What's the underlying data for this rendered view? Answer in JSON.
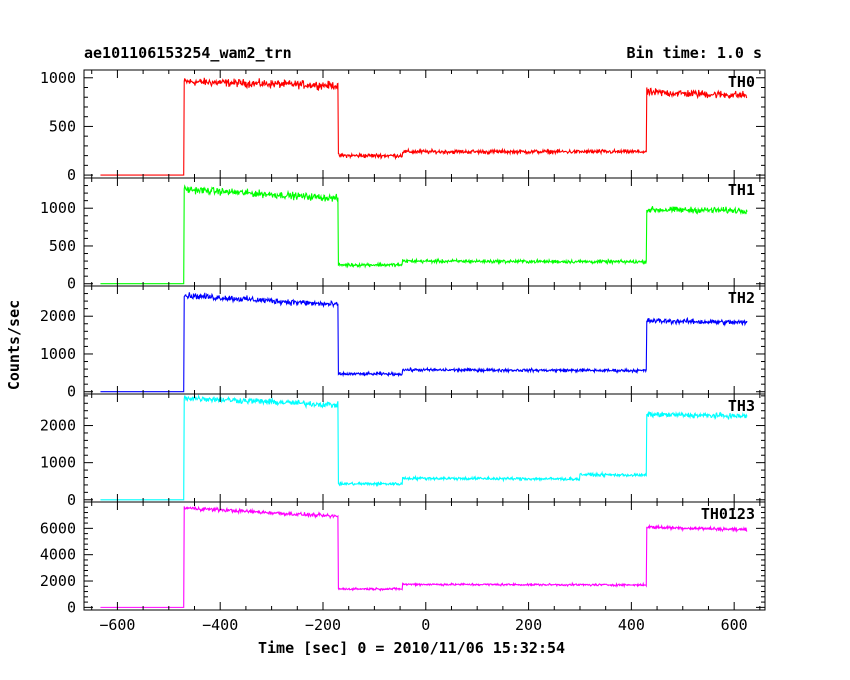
{
  "header": {
    "title": "ae101106153254_wam2_trn",
    "bin_time": "Bin time: 1.0 s"
  },
  "chart_data": {
    "type": "line",
    "title": "ae101106153254_wam2_trn",
    "xlabel": "Time [sec] 0 = 2010/11/06 15:32:54",
    "ylabel": "Counts/sec",
    "xlim": [
      -665,
      660
    ],
    "xticks": [
      -600,
      -400,
      -200,
      0,
      200,
      400,
      600
    ],
    "xticklabels": [
      "−600",
      "−400",
      "−200",
      "0",
      "200",
      "400",
      "600"
    ],
    "x_range": [
      -633,
      625
    ],
    "grid": false,
    "panels": [
      {
        "name": "TH0",
        "color": "#ff0000",
        "ylim": [
          -30,
          1080
        ],
        "yticks": [
          0,
          500,
          1000
        ],
        "segments": [
          {
            "x0": -633,
            "x1": -470,
            "y0": 0,
            "y1": 0,
            "noise": 0
          },
          {
            "x0": -470,
            "x1": -170,
            "y0": 960,
            "y1": 920,
            "noise": 35
          },
          {
            "x0": -170,
            "x1": -45,
            "y0": 200,
            "y1": 200,
            "noise": 18
          },
          {
            "x0": -45,
            "x1": 430,
            "y0": 240,
            "y1": 240,
            "noise": 18
          },
          {
            "x0": 430,
            "x1": 625,
            "y0": 850,
            "y1": 820,
            "noise": 35
          }
        ]
      },
      {
        "name": "TH1",
        "color": "#00ff00",
        "ylim": [
          -30,
          1400
        ],
        "yticks": [
          0,
          500,
          1000
        ],
        "segments": [
          {
            "x0": -633,
            "x1": -470,
            "y0": 0,
            "y1": 0,
            "noise": 0
          },
          {
            "x0": -470,
            "x1": -170,
            "y0": 1250,
            "y1": 1130,
            "noise": 40
          },
          {
            "x0": -170,
            "x1": -45,
            "y0": 250,
            "y1": 250,
            "noise": 20
          },
          {
            "x0": -45,
            "x1": 430,
            "y0": 300,
            "y1": 290,
            "noise": 20
          },
          {
            "x0": 430,
            "x1": 625,
            "y0": 980,
            "y1": 970,
            "noise": 35
          }
        ]
      },
      {
        "name": "TH2",
        "color": "#0000ff",
        "ylim": [
          -60,
          2800
        ],
        "yticks": [
          0,
          1000,
          2000
        ],
        "segments": [
          {
            "x0": -633,
            "x1": -470,
            "y0": 0,
            "y1": 0,
            "noise": 0
          },
          {
            "x0": -470,
            "x1": -170,
            "y0": 2550,
            "y1": 2300,
            "noise": 70
          },
          {
            "x0": -170,
            "x1": -45,
            "y0": 470,
            "y1": 470,
            "noise": 35
          },
          {
            "x0": -45,
            "x1": 430,
            "y0": 580,
            "y1": 560,
            "noise": 35
          },
          {
            "x0": 430,
            "x1": 625,
            "y0": 1880,
            "y1": 1830,
            "noise": 60
          }
        ]
      },
      {
        "name": "TH3",
        "color": "#00ffff",
        "ylim": [
          -60,
          2850
        ],
        "yticks": [
          0,
          1000,
          2000
        ],
        "segments": [
          {
            "x0": -633,
            "x1": -470,
            "y0": 0,
            "y1": 0,
            "noise": 0
          },
          {
            "x0": -470,
            "x1": -170,
            "y0": 2750,
            "y1": 2550,
            "noise": 70
          },
          {
            "x0": -170,
            "x1": -45,
            "y0": 430,
            "y1": 430,
            "noise": 35
          },
          {
            "x0": -45,
            "x1": 300,
            "y0": 580,
            "y1": 560,
            "noise": 35
          },
          {
            "x0": 300,
            "x1": 430,
            "y0": 680,
            "y1": 660,
            "noise": 35
          },
          {
            "x0": 430,
            "x1": 625,
            "y0": 2300,
            "y1": 2250,
            "noise": 60
          }
        ]
      },
      {
        "name": "TH0123",
        "color": "#ff00ff",
        "ylim": [
          -200,
          8000
        ],
        "yticks": [
          0,
          2000,
          4000,
          6000
        ],
        "segments": [
          {
            "x0": -633,
            "x1": -470,
            "y0": 0,
            "y1": 0,
            "noise": 0
          },
          {
            "x0": -470,
            "x1": -170,
            "y0": 7550,
            "y1": 6900,
            "noise": 120
          },
          {
            "x0": -170,
            "x1": -45,
            "y0": 1400,
            "y1": 1400,
            "noise": 70
          },
          {
            "x0": -45,
            "x1": 430,
            "y0": 1750,
            "y1": 1700,
            "noise": 70
          },
          {
            "x0": 430,
            "x1": 625,
            "y0": 6100,
            "y1": 5900,
            "noise": 110
          }
        ]
      }
    ]
  }
}
